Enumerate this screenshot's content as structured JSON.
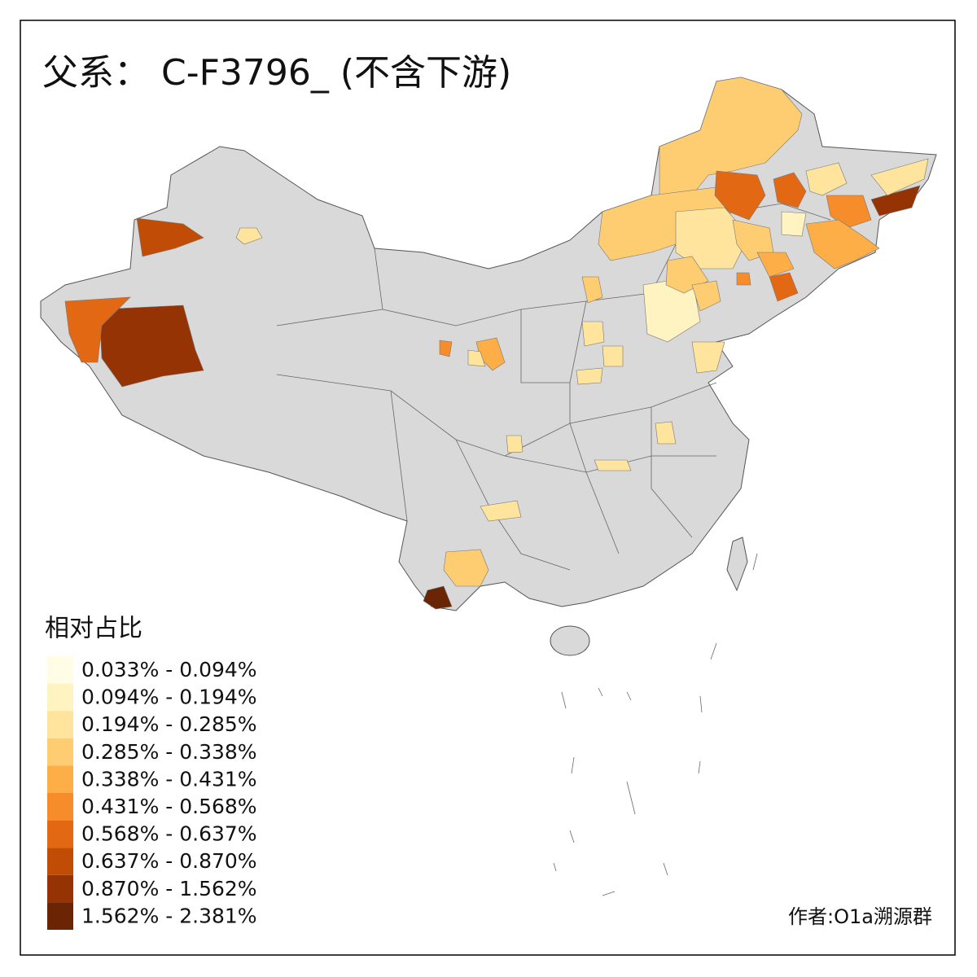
{
  "title": "父系： C-F3796_ (不含下游)",
  "legend": {
    "title": "相对占比",
    "items": [
      {
        "label": "0.033% - 0.094%",
        "color": "#fffde6"
      },
      {
        "label": "0.094% - 0.194%",
        "color": "#fff3c2"
      },
      {
        "label": "0.194% - 0.285%",
        "color": "#fee49c"
      },
      {
        "label": "0.285% - 0.338%",
        "color": "#fecd72"
      },
      {
        "label": "0.338% - 0.431%",
        "color": "#fdae47"
      },
      {
        "label": "0.431% - 0.568%",
        "color": "#f68c2a"
      },
      {
        "label": "0.568% - 0.637%",
        "color": "#e36813"
      },
      {
        "label": "0.637% - 0.870%",
        "color": "#c04c06"
      },
      {
        "label": "0.870% - 1.562%",
        "color": "#963304"
      },
      {
        "label": "1.562% - 2.381%",
        "color": "#6a2504"
      }
    ]
  },
  "credit": "作者:O1a溯源群"
}
